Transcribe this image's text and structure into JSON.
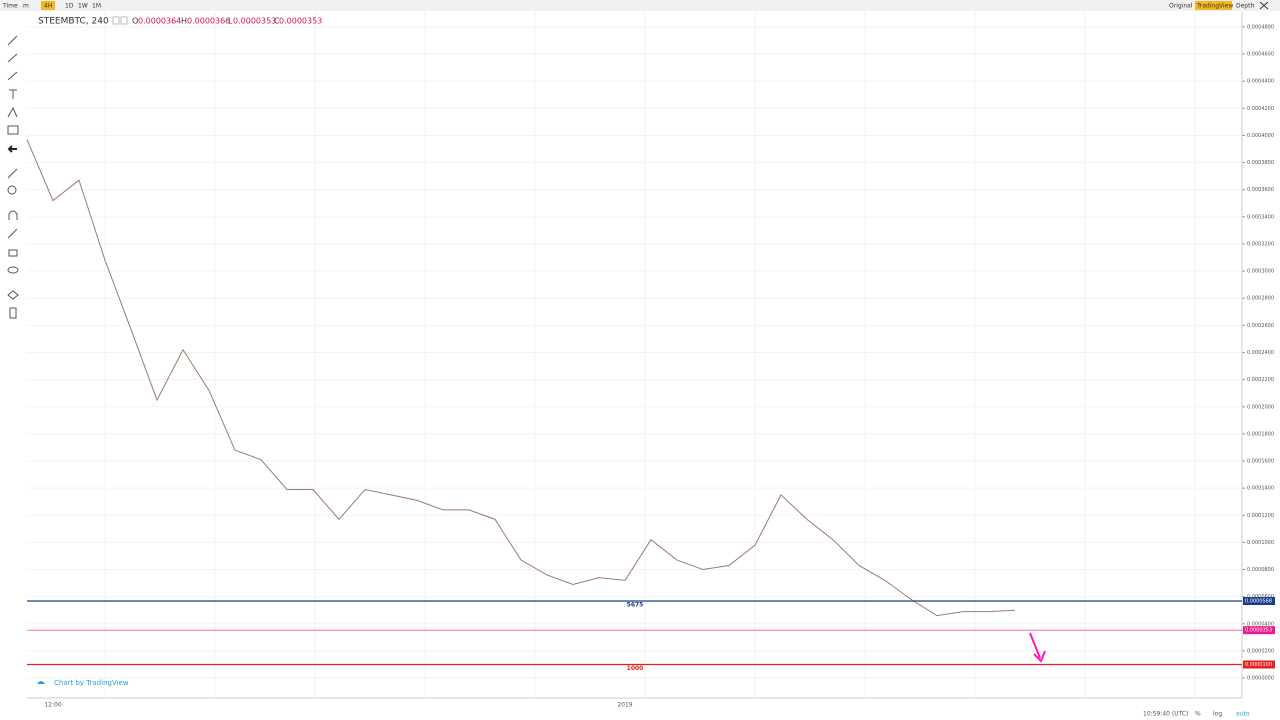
{
  "toolbar": {
    "items": [
      "Time",
      "m",
      "4H",
      "1D",
      "1W",
      "1M"
    ],
    "right": [
      "Original",
      "TradingView",
      "Depth"
    ]
  },
  "legend": {
    "symbol": "STEEMBTC, 240",
    "o_label": "O",
    "o": "0.0000364",
    "h_label": "H",
    "h": "0.0000366",
    "l_label": "L",
    "l": "0.0000353",
    "c_label": "C",
    "c": "0.0000353"
  },
  "footer": {
    "credit": "Chart by TradingView",
    "time": "10:59:40 (UTC)",
    "buttons": [
      "%",
      "log",
      "auto"
    ]
  },
  "chart_data": {
    "type": "line",
    "categories": [
      null,
      "12:00",
      null,
      null,
      null,
      null,
      null,
      null,
      null,
      null,
      null,
      null,
      null,
      null,
      null,
      null,
      null,
      null,
      null,
      null,
      null,
      null,
      null,
      "2019",
      null,
      null,
      null,
      null,
      null,
      null,
      null,
      null,
      null,
      null,
      null,
      null,
      null,
      null,
      null
    ],
    "series": [
      {
        "name": "STEEMBTC",
        "color": "#9a7a6c",
        "values": [
          0.000397,
          0.000352,
          0.000367,
          0.000308,
          0.000257,
          0.000205,
          0.000242,
          0.000212,
          0.000168,
          0.000161,
          0.000139,
          0.000139,
          0.000117,
          0.000139,
          0.000135,
          0.000131,
          0.000124,
          0.000124,
          0.000117,
          8.7e-05,
          7.6e-05,
          6.9e-05,
          7.4e-05,
          7.2e-05,
          0.000102,
          8.7e-05,
          8e-05,
          8.3e-05,
          9.8e-05,
          0.000135,
          0.000117,
          0.000102,
          8.3e-05,
          7.2e-05,
          5.8e-05,
          4.6e-05,
          4.9e-05,
          4.9e-05,
          5e-05
        ]
      }
    ],
    "levels": [
      {
        "value": 5.68e-05,
        "label": "5675",
        "price_label": "0.0000568",
        "color": "#1a3e8c"
      },
      {
        "value": 3.53e-05,
        "label": null,
        "price_label": "0.0000353",
        "color": "#e91e8c"
      },
      {
        "value": 1e-05,
        "label": "1000",
        "price_label": "0.0000100",
        "color": "#e52020"
      }
    ],
    "ylim": [
      -1.47e-05,
      0.000491
    ],
    "yticks": [
      {
        "value": 0,
        "label": "0.0000000"
      },
      {
        "value": 2e-05,
        "label": "0.0000200"
      },
      {
        "value": 4e-05,
        "label": "0.0000400"
      },
      {
        "value": 6e-05,
        "label": "0.0000600"
      },
      {
        "value": 8e-05,
        "label": "0.0000800"
      },
      {
        "value": 0.0001,
        "label": "0.0001000"
      },
      {
        "value": 0.00012,
        "label": "0.0001200"
      },
      {
        "value": 0.00014,
        "label": "0.0001400"
      },
      {
        "value": 0.00016,
        "label": "0.0001600"
      },
      {
        "value": 0.00018,
        "label": "0.0001800"
      },
      {
        "value": 0.0002,
        "label": "0.0002000"
      },
      {
        "value": 0.00022,
        "label": "0.0002200"
      },
      {
        "value": 0.00024,
        "label": "0.0002400"
      },
      {
        "value": 0.00026,
        "label": "0.0002600"
      },
      {
        "value": 0.00028,
        "label": "0.0002800"
      },
      {
        "value": 0.0003,
        "label": "0.0003000"
      },
      {
        "value": 0.00032,
        "label": "0.0003200"
      },
      {
        "value": 0.00034,
        "label": "0.0003400"
      },
      {
        "value": 0.00036,
        "label": "0.0003600"
      },
      {
        "value": 0.00038,
        "label": "0.0003800"
      },
      {
        "value": 0.0004,
        "label": "0.0004000"
      },
      {
        "value": 0.00042,
        "label": "0.0004200"
      },
      {
        "value": 0.00044,
        "label": "0.0004400"
      },
      {
        "value": 0.00046,
        "label": "0.0004600"
      },
      {
        "value": 0.00048,
        "label": "0.0004800"
      }
    ],
    "grid": true
  }
}
